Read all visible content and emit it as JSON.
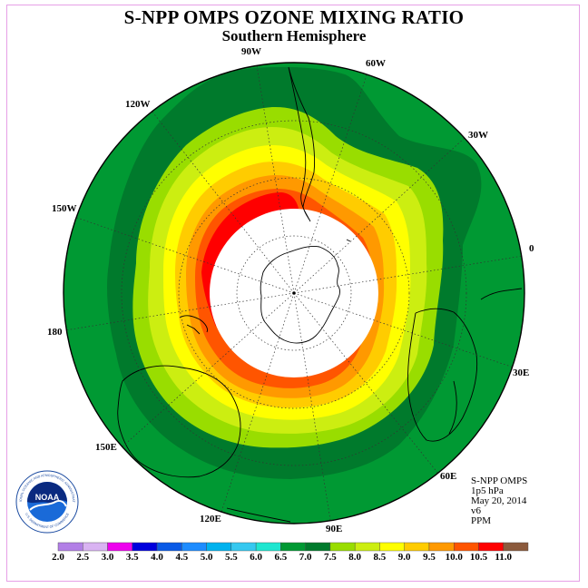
{
  "title": "S-NPP OMPS OZONE MIXING RATIO",
  "subtitle": "Southern Hemisphere",
  "longitude_labels": {
    "w90": "90W",
    "w60": "60W",
    "w30": "30W",
    "e0": "0",
    "e30": "30E",
    "e60": "60E",
    "e90": "90E",
    "e120": "120E",
    "e150": "150E",
    "l180": "180",
    "w150": "150W",
    "w120": "120W"
  },
  "info": {
    "instrument": "S-NPP OMPS",
    "level": "1p5 hPa",
    "date": "May 20, 2014",
    "version": "v6",
    "units": "PPM"
  },
  "logo": {
    "text": "NOAA",
    "ring_text": "NATIONAL OCEANIC AND ATMOSPHERIC ADMINISTRATION",
    "ring_text_bottom": "U.S. DEPARTMENT OF COMMERCE"
  },
  "colorbar": {
    "labels": [
      "2.0",
      "2.5",
      "3.0",
      "3.5",
      "4.0",
      "4.5",
      "5.0",
      "5.5",
      "6.0",
      "6.5",
      "7.0",
      "7.5",
      "8.0",
      "8.5",
      "9.0",
      "9.5",
      "10.0",
      "10.5",
      "11.0"
    ],
    "colors": [
      "#b27fe6",
      "#d9b3f2",
      "#ee00ee",
      "#0000dd",
      "#0a5ae6",
      "#1e8cff",
      "#00b2ee",
      "#36c8f0",
      "#1fe6d0",
      "#009933",
      "#007a2c",
      "#99dd00",
      "#ccee11",
      "#ffff00",
      "#ffcc00",
      "#ff9900",
      "#ff5500",
      "#ff0000",
      "#8b5a3c"
    ]
  },
  "map": {
    "projection": "south-polar-stereographic",
    "bands_ppm": [
      "6.5",
      "7.0",
      "7.5",
      "8.0",
      "8.5",
      "9.0",
      "9.5",
      "10.0",
      "10.5"
    ],
    "band_colors": [
      "#009933",
      "#007a2c",
      "#99dd00",
      "#ccee11",
      "#ffff00",
      "#ffcc00",
      "#ff9900",
      "#ff5500",
      "#ff0000"
    ],
    "no_data_color": "#ffffff"
  }
}
